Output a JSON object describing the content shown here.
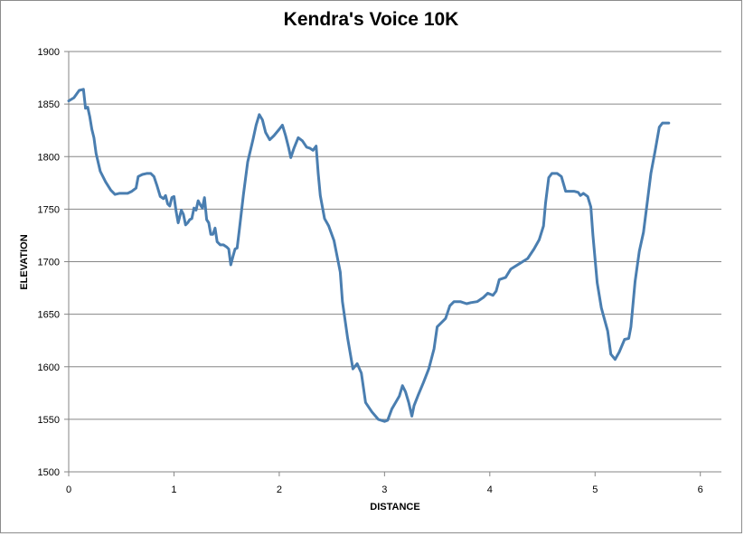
{
  "chart_data": {
    "type": "line",
    "title": "Kendra's Voice 10K",
    "xlabel": "DISTANCE",
    "ylabel": "ELEVATION",
    "xlim": [
      0,
      6.2
    ],
    "ylim": [
      1500,
      1900
    ],
    "xticks": [
      0,
      1,
      2,
      3,
      4,
      5,
      6
    ],
    "yticks": [
      1500,
      1550,
      1600,
      1650,
      1700,
      1750,
      1800,
      1850,
      1900
    ],
    "grid": "horizontal",
    "line_color": "#4a7eb0",
    "series": [
      {
        "points": [
          [
            0.0,
            1853
          ],
          [
            0.05,
            1856
          ],
          [
            0.1,
            1863
          ],
          [
            0.14,
            1864
          ],
          [
            0.16,
            1846
          ],
          [
            0.18,
            1847
          ],
          [
            0.2,
            1838
          ],
          [
            0.22,
            1826
          ],
          [
            0.24,
            1818
          ],
          [
            0.26,
            1803
          ],
          [
            0.3,
            1786
          ],
          [
            0.35,
            1776
          ],
          [
            0.4,
            1768
          ],
          [
            0.44,
            1764
          ],
          [
            0.48,
            1765
          ],
          [
            0.52,
            1765
          ],
          [
            0.56,
            1765
          ],
          [
            0.6,
            1767
          ],
          [
            0.64,
            1770
          ],
          [
            0.66,
            1781
          ],
          [
            0.7,
            1783
          ],
          [
            0.74,
            1784
          ],
          [
            0.78,
            1784
          ],
          [
            0.81,
            1781
          ],
          [
            0.84,
            1772
          ],
          [
            0.87,
            1762
          ],
          [
            0.9,
            1760
          ],
          [
            0.92,
            1763
          ],
          [
            0.94,
            1755
          ],
          [
            0.96,
            1753
          ],
          [
            0.98,
            1761
          ],
          [
            1.0,
            1762
          ],
          [
            1.02,
            1748
          ],
          [
            1.04,
            1737
          ],
          [
            1.07,
            1749
          ],
          [
            1.09,
            1745
          ],
          [
            1.11,
            1735
          ],
          [
            1.13,
            1737
          ],
          [
            1.15,
            1740
          ],
          [
            1.17,
            1741
          ],
          [
            1.19,
            1751
          ],
          [
            1.21,
            1749
          ],
          [
            1.23,
            1758
          ],
          [
            1.25,
            1754
          ],
          [
            1.27,
            1751
          ],
          [
            1.29,
            1761
          ],
          [
            1.31,
            1740
          ],
          [
            1.33,
            1737
          ],
          [
            1.35,
            1726
          ],
          [
            1.37,
            1726
          ],
          [
            1.39,
            1732
          ],
          [
            1.41,
            1719
          ],
          [
            1.44,
            1716
          ],
          [
            1.47,
            1716
          ],
          [
            1.5,
            1714
          ],
          [
            1.52,
            1712
          ],
          [
            1.54,
            1697
          ],
          [
            1.56,
            1705
          ],
          [
            1.58,
            1712
          ],
          [
            1.6,
            1713
          ],
          [
            1.62,
            1730
          ],
          [
            1.66,
            1764
          ],
          [
            1.7,
            1795
          ],
          [
            1.75,
            1816
          ],
          [
            1.78,
            1830
          ],
          [
            1.81,
            1840
          ],
          [
            1.84,
            1835
          ],
          [
            1.87,
            1823
          ],
          [
            1.91,
            1816
          ],
          [
            1.95,
            1820
          ],
          [
            2.0,
            1826
          ],
          [
            2.03,
            1830
          ],
          [
            2.06,
            1820
          ],
          [
            2.09,
            1808
          ],
          [
            2.11,
            1799
          ],
          [
            2.14,
            1808
          ],
          [
            2.18,
            1818
          ],
          [
            2.22,
            1815
          ],
          [
            2.26,
            1809
          ],
          [
            2.29,
            1808
          ],
          [
            2.32,
            1806
          ],
          [
            2.35,
            1810
          ],
          [
            2.37,
            1784
          ],
          [
            2.39,
            1763
          ],
          [
            2.43,
            1741
          ],
          [
            2.47,
            1734
          ],
          [
            2.52,
            1720
          ],
          [
            2.56,
            1700
          ],
          [
            2.58,
            1690
          ],
          [
            2.6,
            1662
          ],
          [
            2.65,
            1627
          ],
          [
            2.7,
            1598
          ],
          [
            2.74,
            1603
          ],
          [
            2.78,
            1594
          ],
          [
            2.82,
            1566
          ],
          [
            2.88,
            1557
          ],
          [
            2.94,
            1550
          ],
          [
            3.0,
            1548
          ],
          [
            3.03,
            1549
          ],
          [
            3.07,
            1560
          ],
          [
            3.1,
            1565
          ],
          [
            3.14,
            1572
          ],
          [
            3.17,
            1582
          ],
          [
            3.2,
            1576
          ],
          [
            3.23,
            1566
          ],
          [
            3.26,
            1553
          ],
          [
            3.28,
            1563
          ],
          [
            3.32,
            1573
          ],
          [
            3.37,
            1585
          ],
          [
            3.42,
            1598
          ],
          [
            3.47,
            1617
          ],
          [
            3.5,
            1638
          ],
          [
            3.55,
            1643
          ],
          [
            3.58,
            1646
          ],
          [
            3.62,
            1658
          ],
          [
            3.66,
            1662
          ],
          [
            3.72,
            1662
          ],
          [
            3.78,
            1660
          ],
          [
            3.82,
            1661
          ],
          [
            3.88,
            1662
          ],
          [
            3.94,
            1666
          ],
          [
            3.98,
            1670
          ],
          [
            4.03,
            1668
          ],
          [
            4.06,
            1672
          ],
          [
            4.09,
            1683
          ],
          [
            4.15,
            1685
          ],
          [
            4.2,
            1693
          ],
          [
            4.28,
            1698
          ],
          [
            4.36,
            1703
          ],
          [
            4.42,
            1712
          ],
          [
            4.47,
            1721
          ],
          [
            4.51,
            1734
          ],
          [
            4.53,
            1756
          ],
          [
            4.56,
            1780
          ],
          [
            4.59,
            1784
          ],
          [
            4.64,
            1784
          ],
          [
            4.68,
            1781
          ],
          [
            4.72,
            1767
          ],
          [
            4.76,
            1767
          ],
          [
            4.8,
            1767
          ],
          [
            4.84,
            1766
          ],
          [
            4.86,
            1763
          ],
          [
            4.89,
            1765
          ],
          [
            4.93,
            1762
          ],
          [
            4.96,
            1752
          ],
          [
            4.98,
            1725
          ],
          [
            5.02,
            1680
          ],
          [
            5.06,
            1656
          ],
          [
            5.12,
            1634
          ],
          [
            5.15,
            1612
          ],
          [
            5.19,
            1607
          ],
          [
            5.23,
            1614
          ],
          [
            5.28,
            1626
          ],
          [
            5.32,
            1627
          ],
          [
            5.34,
            1638
          ],
          [
            5.38,
            1681
          ],
          [
            5.42,
            1710
          ],
          [
            5.46,
            1728
          ],
          [
            5.5,
            1760
          ],
          [
            5.53,
            1784
          ],
          [
            5.57,
            1805
          ],
          [
            5.61,
            1828
          ],
          [
            5.64,
            1832
          ],
          [
            5.68,
            1832
          ],
          [
            5.7,
            1832
          ]
        ]
      }
    ]
  }
}
